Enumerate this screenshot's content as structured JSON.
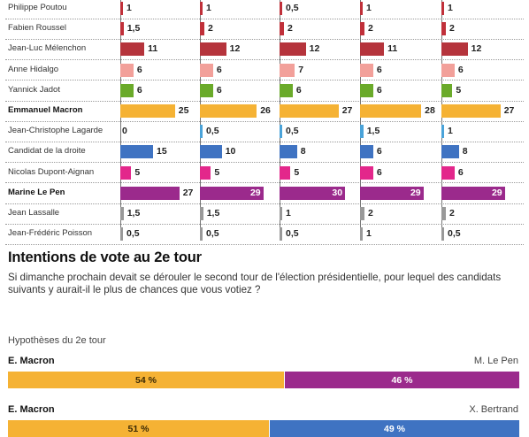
{
  "chart_data": {
    "type": "bar",
    "orientation": "horizontal",
    "categories": [
      "Philippe Poutou",
      "Fabien Roussel",
      "Jean-Luc Mélenchon",
      "Anne Hidalgo",
      "Yannick Jadot",
      "Emmanuel Macron",
      "Jean-Christophe Lagarde",
      "Candidat de la droite",
      "Nicolas Dupont-Aignan",
      "Marine Le Pen",
      "Jean Lassalle",
      "Jean-Frédéric Poisson"
    ],
    "highlighted": [
      "Emmanuel Macron",
      "Marine Le Pen"
    ],
    "category_colors": [
      "#c0303a",
      "#c0303a",
      "#b5343c",
      "#f2a09a",
      "#6aaa2a",
      "#f5b234",
      "#4aa3d9",
      "#3f73c2",
      "#e3278b",
      "#9b2a8c",
      "#999999",
      "#999999"
    ],
    "series": [
      {
        "values": [
          1,
          1.5,
          11,
          6,
          6,
          25,
          0,
          15,
          5,
          27,
          1.5,
          0.5
        ],
        "labels": [
          "1",
          "1,5",
          "11",
          "6",
          "6",
          "25",
          "0",
          "15",
          "5",
          "27",
          "1,5",
          "0,5"
        ]
      },
      {
        "values": [
          1,
          2,
          12,
          6,
          6,
          26,
          0.5,
          10,
          5,
          29,
          1.5,
          0.5
        ],
        "labels": [
          "1",
          "2",
          "12",
          "6",
          "6",
          "26",
          "0,5",
          "10",
          "5",
          "29",
          "1,5",
          "0,5"
        ]
      },
      {
        "values": [
          0.5,
          2,
          12,
          7,
          6,
          27,
          0.5,
          8,
          5,
          30,
          1,
          0.5
        ],
        "labels": [
          "0,5",
          "2",
          "12",
          "7",
          "6",
          "27",
          "0,5",
          "8",
          "5",
          "30",
          "1",
          "0,5"
        ]
      },
      {
        "values": [
          1,
          2,
          11,
          6,
          6,
          28,
          1.5,
          6,
          6,
          29,
          2,
          1
        ],
        "labels": [
          "1",
          "2",
          "11",
          "6",
          "6",
          "28",
          "1,5",
          "6",
          "6",
          "29",
          "2",
          "1"
        ]
      },
      {
        "values": [
          1,
          2,
          12,
          6,
          5,
          27,
          1,
          8,
          6,
          29,
          2,
          0.5
        ],
        "labels": [
          "1",
          "2",
          "12",
          "6",
          "5",
          "27",
          "1",
          "8",
          "6",
          "29",
          "2",
          "0,5"
        ]
      }
    ]
  },
  "second_round": {
    "title": "Intentions de vote au 2e tour",
    "question": "Si dimanche prochain devait se dérouler le second tour de l'élection présidentielle, pour lequel des candidats suivants y aurait-il le plus de chances que vous votiez ?",
    "hypotheses_label": "Hypothèses du 2e tour",
    "chart_data": {
      "type": "bar",
      "stacked": true,
      "duels": [
        {
          "left": "E. Macron",
          "right": "M. Le Pen",
          "left_value": 54,
          "right_value": 46,
          "left_label": "54 %",
          "right_label": "46 %",
          "left_color": "#f5b234",
          "right_color": "#9b2a8c"
        },
        {
          "left": "E. Macron",
          "right": "X. Bertrand",
          "left_value": 51,
          "right_value": 49,
          "left_label": "51 %",
          "right_label": "49 %",
          "left_color": "#f5b234",
          "right_color": "#3f73c2"
        }
      ]
    }
  }
}
